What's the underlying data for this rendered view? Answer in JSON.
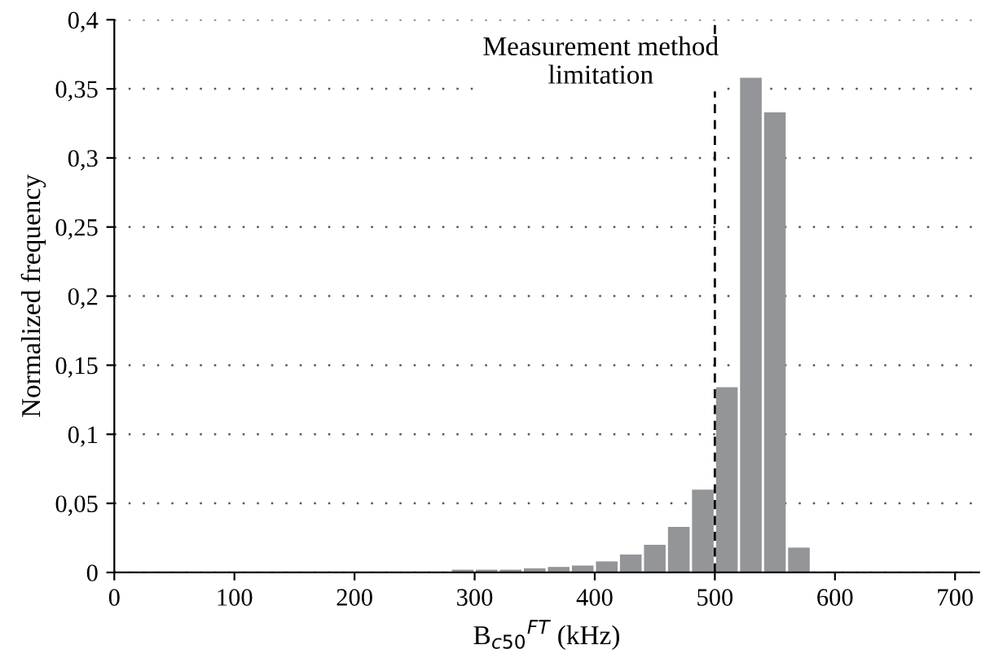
{
  "chart_data": {
    "type": "histogram",
    "xlabel": "B$_{c50}$$^{FT}$ (kHz)",
    "ylabel": "Normalized frequency",
    "bins": [
      280,
      300,
      320,
      340,
      360,
      380,
      400,
      420,
      440,
      460,
      480,
      500,
      520,
      540,
      560,
      580
    ],
    "values": [
      0.002,
      0.002,
      0.002,
      0.003,
      0.004,
      0.005,
      0.008,
      0.013,
      0.02,
      0.033,
      0.06,
      0.134,
      0.358,
      0.333,
      0.018
    ],
    "color": "#939598",
    "xlim": [
      0,
      720
    ],
    "xticks": [
      0,
      100,
      200,
      300,
      400,
      500,
      600,
      700
    ],
    "ylim": [
      0,
      0.4
    ],
    "yticks": [
      {
        "value": 0,
        "label": "0"
      },
      {
        "value": 0.05,
        "label": "0,05"
      },
      {
        "value": 0.1,
        "label": "0,1"
      },
      {
        "value": 0.15,
        "label": "0,15"
      },
      {
        "value": 0.2,
        "label": "0,2"
      },
      {
        "value": 0.25,
        "label": "0,25"
      },
      {
        "value": 0.3,
        "label": "0,3"
      },
      {
        "value": 0.35,
        "label": "0,35"
      },
      {
        "value": 0.4,
        "label": "0,4"
      }
    ],
    "grid": "y",
    "ref_lines": [
      {
        "axis": "x",
        "value": 500,
        "label": "Measurement method\nlimitation",
        "color": "#000000",
        "line_style": "dashed"
      }
    ]
  }
}
